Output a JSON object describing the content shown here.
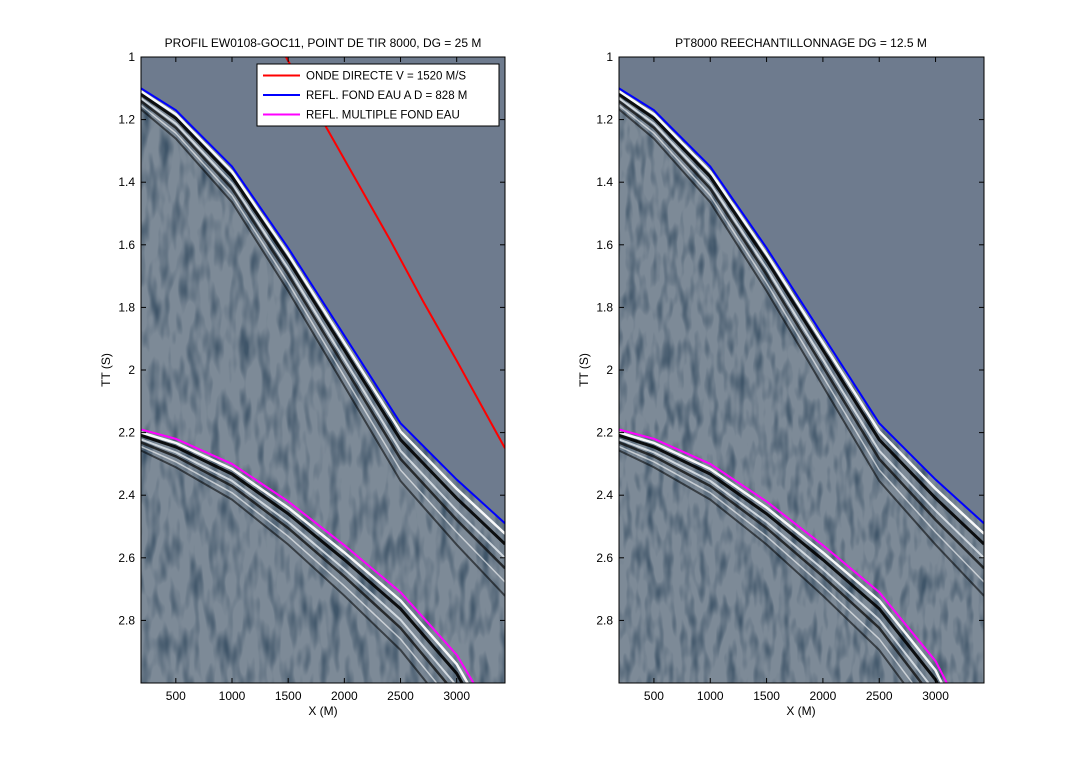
{
  "chart_data": [
    {
      "type": "seismic_section",
      "title": "PROFIL EW0108-GOC11, POINT DE TIR 8000, DG = 25 M",
      "xlabel": "X (M)",
      "ylabel": "TT (S)",
      "xlim": [
        190,
        3430
      ],
      "ylim": [
        1.0,
        3.0
      ],
      "y_reversed": true,
      "xticks": [
        500,
        1000,
        1500,
        2000,
        2500,
        3000
      ],
      "yticks": [
        1,
        1.2,
        1.4,
        1.6,
        1.8,
        2,
        2.2,
        2.4,
        2.6,
        2.8
      ],
      "trace_spacing_m": 25,
      "background_color": "#6e7b8e",
      "legend_position": "top-right",
      "legend": [
        {
          "label": "ONDE DIRECTE V = 1520 M/S",
          "color": "#ff0000"
        },
        {
          "label": "REFL. FOND EAU A D = 828 M",
          "color": "#0000ff"
        },
        {
          "label": "REFL. MULTIPLE FOND EAU",
          "color": "#ff00ff"
        }
      ],
      "series": [
        {
          "name": "ONDE DIRECTE V = 1520 M/S",
          "color": "#ff0000",
          "x": [
            1480,
            1800,
            2100,
            2400,
            2700,
            3000,
            3430
          ],
          "y": [
            1.0,
            1.2,
            1.39,
            1.58,
            1.78,
            1.97,
            2.25
          ]
        },
        {
          "name": "REFL. FOND EAU A D = 828 M",
          "color": "#0000ff",
          "x": [
            190,
            500,
            1000,
            1500,
            2000,
            2500,
            3000,
            3430
          ],
          "y": [
            1.1,
            1.17,
            1.35,
            1.61,
            1.89,
            2.17,
            2.35,
            2.49
          ]
        },
        {
          "name": "REFL. MULTIPLE FOND EAU",
          "color": "#ff00ff",
          "x": [
            190,
            500,
            1000,
            1500,
            2000,
            2500,
            3000,
            3150
          ],
          "y": [
            2.19,
            2.22,
            2.3,
            2.42,
            2.56,
            2.71,
            2.91,
            3.0
          ]
        }
      ]
    },
    {
      "type": "seismic_section",
      "title": "PT8000 REECHANTILLONNAGE DG = 12.5 M",
      "xlabel": "X (M)",
      "ylabel": "TT (S)",
      "xlim": [
        190,
        3430
      ],
      "ylim": [
        1.0,
        3.0
      ],
      "y_reversed": true,
      "xticks": [
        500,
        1000,
        1500,
        2000,
        2500,
        3000
      ],
      "yticks": [
        1,
        1.2,
        1.4,
        1.6,
        1.8,
        2,
        2.2,
        2.4,
        2.6,
        2.8
      ],
      "trace_spacing_m": 12.5,
      "background_color": "#6e7b8e",
      "series": [
        {
          "color": "#0000ff",
          "x": [
            190,
            500,
            1000,
            1500,
            2000,
            2500,
            3000,
            3430
          ],
          "y": [
            1.1,
            1.17,
            1.35,
            1.61,
            1.89,
            2.17,
            2.35,
            2.49
          ]
        },
        {
          "color": "#ff00ff",
          "x": [
            190,
            500,
            1000,
            1500,
            2000,
            2500,
            3000,
            3100
          ],
          "y": [
            2.19,
            2.22,
            2.3,
            2.42,
            2.56,
            2.71,
            2.93,
            3.0
          ]
        }
      ]
    }
  ]
}
